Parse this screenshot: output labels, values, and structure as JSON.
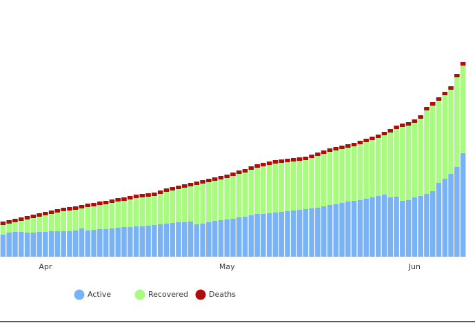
{
  "chart_data": {
    "type": "stacked_bar",
    "categories": [
      null,
      null,
      null,
      null,
      null,
      null,
      null,
      "Apr",
      null,
      null,
      null,
      null,
      null,
      null,
      null,
      null,
      null,
      null,
      null,
      null,
      null,
      null,
      null,
      null,
      null,
      null,
      null,
      null,
      null,
      null,
      null,
      null,
      null,
      null,
      null,
      null,
      null,
      "May",
      null,
      null,
      null,
      null,
      null,
      null,
      null,
      null,
      null,
      null,
      null,
      null,
      null,
      null,
      null,
      null,
      null,
      null,
      null,
      null,
      null,
      null,
      null,
      null,
      null,
      null,
      null,
      null,
      null,
      null,
      "Jun",
      null,
      null,
      null,
      null,
      null,
      null,
      null,
      null
    ],
    "series": [
      {
        "name": "Active",
        "color": "#7ab3f5",
        "values": [
          32,
          35,
          36,
          36,
          35,
          35,
          36,
          36,
          37,
          37,
          37,
          37,
          38,
          41,
          38,
          39,
          40,
          40,
          41,
          42,
          43,
          43,
          44,
          44,
          45,
          46,
          47,
          48,
          49,
          50,
          50,
          51,
          47,
          48,
          50,
          52,
          53,
          54,
          55,
          57,
          58,
          60,
          62,
          62,
          63,
          64,
          65,
          66,
          67,
          68,
          69,
          70,
          71,
          73,
          75,
          76,
          78,
          80,
          81,
          82,
          84,
          86,
          88,
          90,
          86,
          87,
          81,
          82,
          86,
          88,
          91,
          95,
          107,
          113,
          120,
          130,
          150
        ]
      },
      {
        "name": "Recovered",
        "color": "#a8fb7e",
        "values": [
          14,
          13,
          14,
          16,
          19,
          21,
          22,
          24,
          25,
          27,
          29,
          30,
          30,
          29,
          34,
          34,
          35,
          36,
          37,
          38,
          38,
          40,
          41,
          42,
          42,
          42,
          44,
          46,
          47,
          48,
          50,
          51,
          57,
          58,
          58,
          58,
          59,
          60,
          62,
          63,
          64,
          66,
          67,
          69,
          70,
          71,
          71,
          71,
          71,
          71,
          71,
          73,
          75,
          76,
          77,
          78,
          78,
          78,
          79,
          81,
          82,
          83,
          84,
          86,
          94,
          98,
          107,
          108,
          108,
          112,
          121,
          124,
          119,
          121,
          122,
          130,
          127
        ]
      },
      {
        "name": "Deaths",
        "color": "#b10c0c",
        "values": [
          5,
          5,
          5,
          5,
          5,
          5,
          5,
          5,
          5,
          5,
          5,
          5,
          5,
          5,
          5,
          5,
          5,
          5,
          5,
          5,
          5,
          5,
          5,
          5,
          5,
          5,
          5,
          5,
          5,
          5,
          5,
          5,
          5,
          5,
          5,
          5,
          5,
          5,
          5,
          5,
          5,
          5,
          5,
          5,
          5,
          5,
          5,
          5,
          5,
          5,
          5,
          5,
          5,
          5,
          5,
          5,
          5,
          5,
          5,
          5,
          5,
          5,
          5,
          5,
          5,
          5,
          5,
          5,
          5,
          5,
          5,
          5,
          5,
          5,
          5,
          5,
          5
        ]
      }
    ],
    "ylim": [
      0,
      300
    ],
    "legend": "bottom"
  }
}
